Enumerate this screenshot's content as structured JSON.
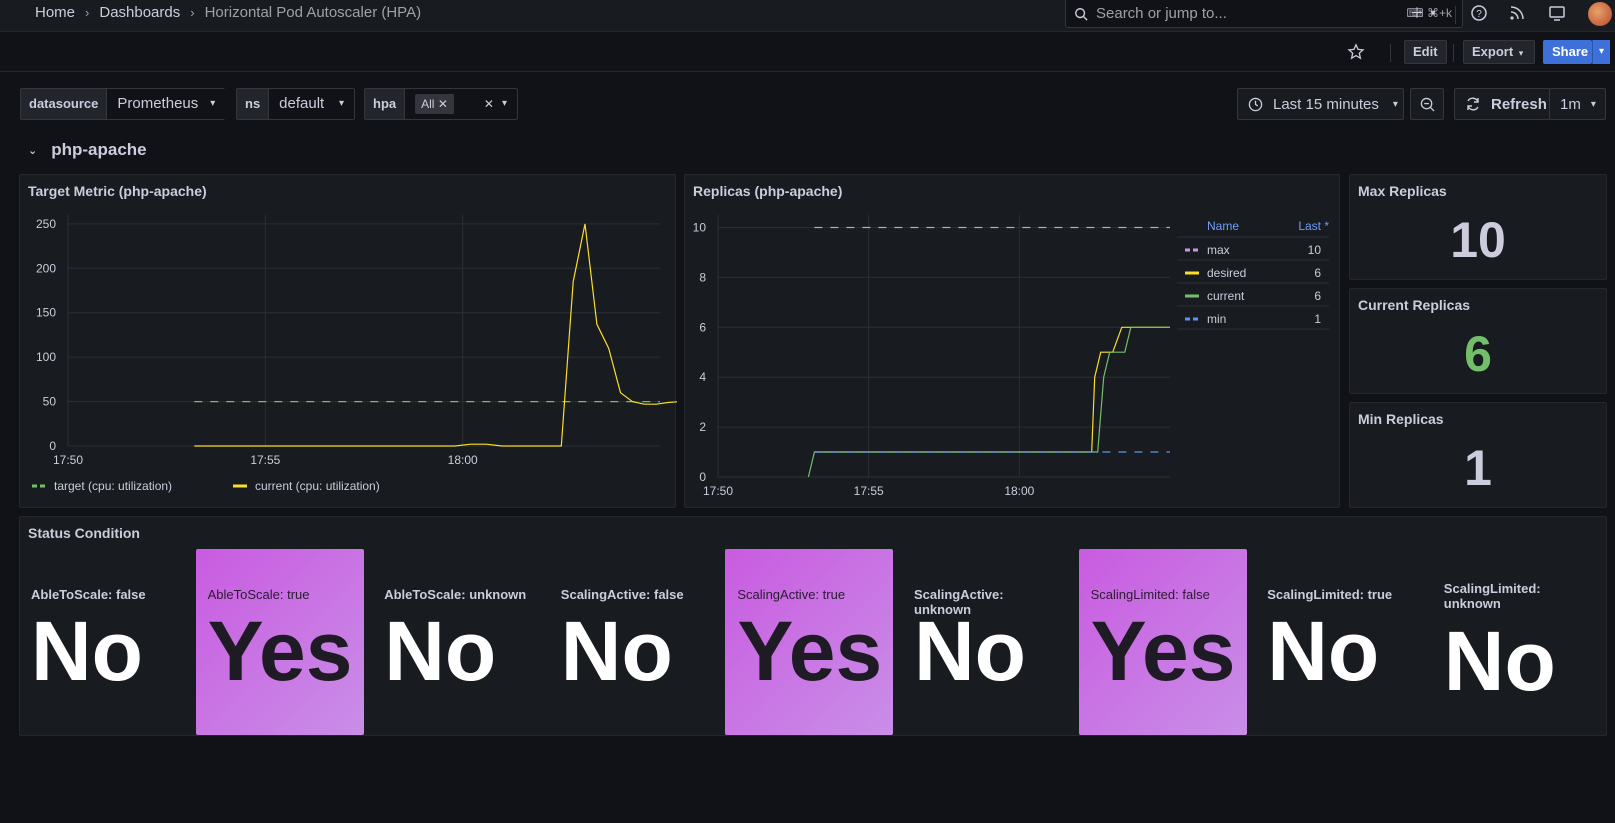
{
  "breadcrumb": {
    "home": "Home",
    "dashboards": "Dashboards",
    "current": "Horizontal Pod Autoscaler (HPA)"
  },
  "search": {
    "placeholder": "Search or jump to...",
    "shortcut": "⌘+k"
  },
  "toolbar": {
    "edit": "Edit",
    "export": "Export",
    "share": "Share"
  },
  "variables": [
    {
      "label": "datasource",
      "value": "Prometheus"
    },
    {
      "label": "ns",
      "value": "default"
    },
    {
      "label": "hpa",
      "value": "All"
    }
  ],
  "time": {
    "range": "Last 15 minutes",
    "refresh": "Refresh",
    "interval": "1m"
  },
  "row": {
    "title": "php-apache"
  },
  "panels": {
    "target_metric": {
      "title": "Target Metric (php-apache)"
    },
    "replicas": {
      "title": "Replicas (php-apache)"
    },
    "max_replicas": {
      "title": "Max Replicas",
      "value": "10",
      "color": "#ccccdc"
    },
    "current_replicas": {
      "title": "Current Replicas",
      "value": "6",
      "color": "#73bf69"
    },
    "min_replicas": {
      "title": "Min Replicas",
      "value": "1",
      "color": "#ccccdc"
    },
    "status_condition": {
      "title": "Status Condition"
    }
  },
  "status_cells": [
    {
      "label": "AbleToScale: false",
      "value": "No",
      "state": "no"
    },
    {
      "label": "AbleToScale: true",
      "value": "Yes",
      "state": "yes"
    },
    {
      "label": "AbleToScale: unknown",
      "value": "No",
      "state": "no"
    },
    {
      "label": "ScalingActive: false",
      "value": "No",
      "state": "no"
    },
    {
      "label": "ScalingActive: true",
      "value": "Yes",
      "state": "yes"
    },
    {
      "label": "ScalingActive: unknown",
      "value": "No",
      "state": "no"
    },
    {
      "label": "ScalingLimited: false",
      "value": "Yes",
      "state": "yes"
    },
    {
      "label": "ScalingLimited: true",
      "value": "No",
      "state": "no"
    },
    {
      "label": "ScalingLimited: unknown",
      "value": "No",
      "state": "no"
    }
  ],
  "chart_data": [
    {
      "type": "line",
      "title": "Target Metric (php-apache)",
      "xticks": [
        "17:50",
        "17:55",
        "18:00"
      ],
      "x_minutes_range": [
        -15,
        0
      ],
      "yticks": [
        0,
        50,
        100,
        150,
        200,
        250
      ],
      "ylim": [
        0,
        260
      ],
      "legend_position": "bottom",
      "series": [
        {
          "name": "target (cpu: utilization)",
          "color": "#73bf69",
          "dashed": true,
          "points": [
            [
              3.2,
              50
            ],
            [
              15.0,
              50
            ]
          ]
        },
        {
          "name": "current (cpu: utilization)",
          "color": "#fade2a",
          "dashed": false,
          "points": [
            [
              3.2,
              0
            ],
            [
              9.8,
              0
            ],
            [
              10.2,
              2
            ],
            [
              10.6,
              2
            ],
            [
              11.0,
              0
            ],
            [
              12.3,
              0
            ],
            [
              12.5,
              0
            ],
            [
              12.8,
              185
            ],
            [
              13.1,
              250
            ],
            [
              13.4,
              137
            ],
            [
              13.7,
              110
            ],
            [
              14.0,
              60
            ],
            [
              14.3,
              50
            ],
            [
              14.6,
              47
            ],
            [
              14.9,
              47
            ],
            [
              15.2,
              49
            ],
            [
              15.5,
              50
            ],
            [
              15.8,
              50
            ]
          ]
        }
      ]
    },
    {
      "type": "line",
      "title": "Replicas (php-apache)",
      "xticks": [
        "17:50",
        "17:55",
        "18:00"
      ],
      "yticks": [
        0,
        2,
        4,
        6,
        8,
        10
      ],
      "ylim": [
        0,
        10.5
      ],
      "legend_position": "right",
      "legend_headers": [
        "Name",
        "Last *"
      ],
      "series": [
        {
          "name": "max",
          "color": "#ca95e5",
          "dashed": true,
          "last": "10",
          "points": [
            [
              3.2,
              10
            ],
            [
              15.0,
              10
            ]
          ]
        },
        {
          "name": "desired",
          "color": "#fade2a",
          "dashed": false,
          "last": "6",
          "points": [
            [
              3.2,
              1
            ],
            [
              12.4,
              1
            ],
            [
              12.5,
              4
            ],
            [
              12.7,
              5
            ],
            [
              13.1,
              5
            ],
            [
              13.4,
              6
            ],
            [
              15.0,
              6
            ]
          ]
        },
        {
          "name": "current",
          "color": "#73bf69",
          "dashed": false,
          "last": "6",
          "points": [
            [
              3.0,
              0
            ],
            [
              3.2,
              1
            ],
            [
              12.6,
              1
            ],
            [
              12.8,
              4
            ],
            [
              13.0,
              5
            ],
            [
              13.5,
              5
            ],
            [
              13.7,
              6
            ],
            [
              15.0,
              6
            ]
          ]
        },
        {
          "name": "min",
          "color": "#5794f2",
          "dashed": true,
          "last": "1",
          "points": [
            [
              3.2,
              1
            ],
            [
              15.0,
              1
            ]
          ]
        }
      ]
    }
  ]
}
